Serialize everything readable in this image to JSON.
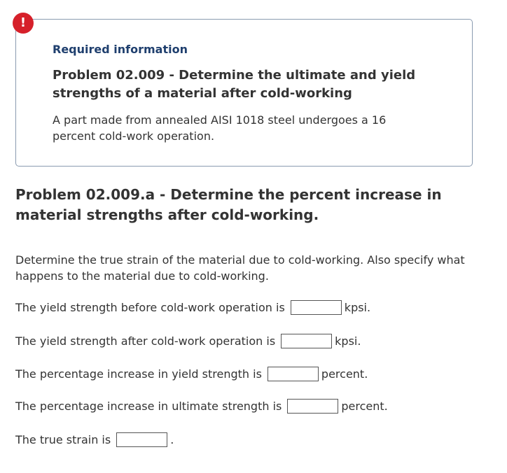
{
  "badge": "!",
  "info": {
    "label": "Required information",
    "title": "Problem 02.009 - Determine the ultimate and yield strengths of a material after cold-working",
    "description": "A part made from annealed AISI 1018 steel undergoes a 16 percent cold-work operation."
  },
  "problem": {
    "heading": "Problem 02.009.a - Determine the percent increase in material strengths after cold-working.",
    "instructions": "Determine the true strain of the material due to cold-working. Also specify what happens to the material due to cold-working.",
    "questions": [
      {
        "prompt": "The yield strength before cold-work operation is",
        "unit": "kpsi."
      },
      {
        "prompt": "The yield strength after cold-work operation is",
        "unit": "kpsi."
      },
      {
        "prompt": "The percentage increase in yield strength is",
        "unit": "percent."
      },
      {
        "prompt": "The percentage increase in ultimate strength is",
        "unit": "percent."
      },
      {
        "prompt": "The true strain is",
        "unit": "."
      }
    ]
  }
}
